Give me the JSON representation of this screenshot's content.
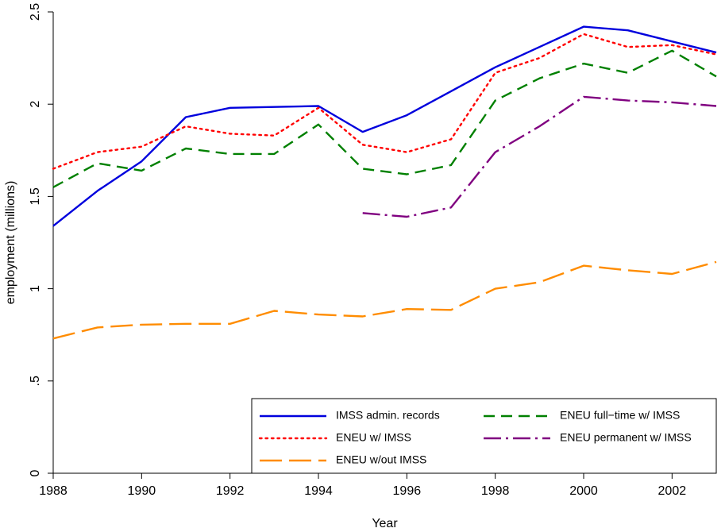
{
  "chart_data": {
    "type": "line",
    "xlabel": "Year",
    "ylabel": "employment (millions)",
    "xlim": [
      1988,
      2003
    ],
    "ylim": [
      0,
      2.5
    ],
    "x_ticks": [
      1988,
      1990,
      1992,
      1994,
      1996,
      1998,
      2000,
      2002
    ],
    "x_tick_labels": [
      "1988",
      "1990",
      "1992",
      "1994",
      "1996",
      "1998",
      "2000",
      "2002"
    ],
    "y_ticks": [
      0,
      0.5,
      1,
      1.5,
      2,
      2.5
    ],
    "y_tick_labels": [
      "0",
      ".5",
      "1",
      "1.5",
      "2",
      "2.5"
    ],
    "grid": false,
    "legend_position": "bottom-right",
    "series": [
      {
        "name": "IMSS admin. records",
        "color": "#0000dd",
        "style": "solid",
        "x": [
          1988,
          1989,
          1990,
          1991,
          1992,
          1993,
          1994,
          1995,
          1996,
          1997,
          1998,
          1999,
          2000,
          2001,
          2002,
          2003
        ],
        "y": [
          1.34,
          1.53,
          1.69,
          1.93,
          1.98,
          1.985,
          1.99,
          1.85,
          1.94,
          2.07,
          2.2,
          2.31,
          2.42,
          2.4,
          2.34,
          2.28
        ]
      },
      {
        "name": "ENEU w/ IMSS",
        "color": "#ff0000",
        "style": "dotted",
        "x": [
          1988,
          1989,
          1990,
          1991,
          1992,
          1993,
          1994,
          1995,
          1996,
          1997,
          1998,
          1999,
          2000,
          2001,
          2002,
          2003
        ],
        "y": [
          1.65,
          1.74,
          1.77,
          1.88,
          1.84,
          1.83,
          1.98,
          1.78,
          1.74,
          1.81,
          2.17,
          2.25,
          2.38,
          2.31,
          2.32,
          2.27
        ]
      },
      {
        "name": "ENEU w/out IMSS",
        "color": "#ff8c00",
        "style": "longdash",
        "x": [
          1988,
          1989,
          1990,
          1991,
          1992,
          1993,
          1994,
          1995,
          1996,
          1997,
          1998,
          1999,
          2000,
          2001,
          2002,
          2003
        ],
        "y": [
          0.73,
          0.79,
          0.805,
          0.81,
          0.81,
          0.88,
          0.86,
          0.85,
          0.89,
          0.885,
          1.0,
          1.035,
          1.125,
          1.1,
          1.08,
          1.145
        ]
      },
      {
        "name": "ENEU full−time w/ IMSS",
        "color": "#008000",
        "style": "dashed",
        "x": [
          1988,
          1989,
          1990,
          1991,
          1992,
          1993,
          1994,
          1995,
          1996,
          1997,
          1998,
          1999,
          2000,
          2001,
          2002,
          2003
        ],
        "y": [
          1.55,
          1.68,
          1.64,
          1.76,
          1.73,
          1.73,
          1.89,
          1.65,
          1.62,
          1.67,
          2.02,
          2.14,
          2.22,
          2.17,
          2.29,
          2.15
        ]
      },
      {
        "name": "ENEU permanent w/ IMSS",
        "color": "#800080",
        "style": "dashdot",
        "x": [
          1995,
          1996,
          1997,
          1998,
          1999,
          2000,
          2001,
          2002,
          2003
        ],
        "y": [
          1.41,
          1.39,
          1.44,
          1.74,
          1.88,
          2.04,
          2.02,
          2.01,
          1.99
        ]
      }
    ],
    "legend_order": [
      0,
      3,
      1,
      4,
      2
    ]
  }
}
